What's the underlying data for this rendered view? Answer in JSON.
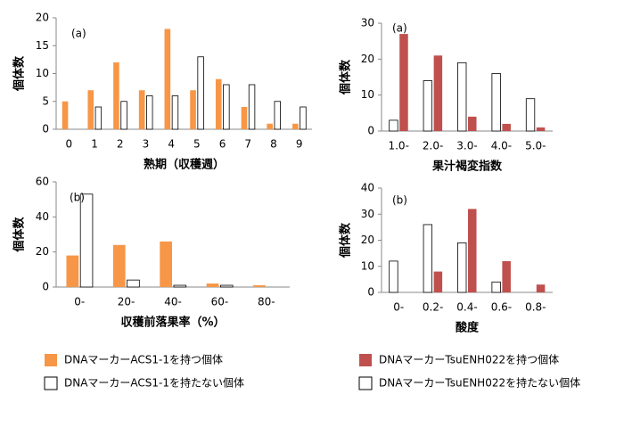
{
  "chart_data": [
    {
      "type": "bar",
      "annotation": "(a)",
      "ylabel": "個体数",
      "xlabel": "熟期（収穫週）",
      "categories": [
        "0",
        "1",
        "2",
        "3",
        "4",
        "5",
        "6",
        "7",
        "8",
        "9"
      ],
      "series": [
        {
          "name": "DNAマーカーACS1-1を持つ個体",
          "color": "#f79646",
          "values": [
            5,
            7,
            12,
            7,
            18,
            7,
            9,
            4,
            1,
            1
          ]
        },
        {
          "name": "DNAマーカーACS1-1を持たない個体",
          "color": "#ffffff",
          "values": [
            0,
            4,
            5,
            6,
            6,
            13,
            8,
            8,
            5,
            4
          ]
        }
      ],
      "ylim": [
        0,
        20
      ],
      "yticks": [
        0,
        5,
        10,
        15,
        20
      ]
    },
    {
      "type": "bar",
      "annotation": "(a)",
      "ylabel": "個体数",
      "xlabel": "果汁褐変指数",
      "categories": [
        "1.0-",
        "2.0-",
        "3.0-",
        "4.0-",
        "5.0-"
      ],
      "series": [
        {
          "name": "DNAマーカーTsuENH022を持たない個体",
          "color": "#ffffff",
          "values": [
            3,
            14,
            19,
            16,
            9
          ]
        },
        {
          "name": "DNAマーカーTsuENH022を持つ個体",
          "color": "#c0504d",
          "values": [
            27,
            21,
            4,
            2,
            1
          ]
        }
      ],
      "ylim": [
        0,
        30
      ],
      "yticks": [
        0,
        10,
        20,
        30
      ]
    },
    {
      "type": "bar",
      "annotation": "(b)",
      "ylabel": "個体数",
      "xlabel": "収穫前落果率（%）",
      "categories": [
        "0-",
        "20-",
        "40-",
        "60-",
        "80-"
      ],
      "series": [
        {
          "color": "#f79646",
          "values": [
            18,
            24,
            26,
            2,
            1
          ]
        },
        {
          "color": "#ffffff",
          "values": [
            53,
            4,
            1,
            1,
            0
          ]
        }
      ],
      "ylim": [
        0,
        60
      ],
      "yticks": [
        0,
        20,
        40,
        60
      ]
    },
    {
      "type": "bar",
      "annotation": "(b)",
      "ylabel": "個体数",
      "xlabel": "酸度",
      "categories": [
        "0-",
        "0.2-",
        "0.4-",
        "0.6-",
        "0.8-"
      ],
      "series": [
        {
          "color": "#ffffff",
          "values": [
            12,
            26,
            19,
            4,
            0
          ]
        },
        {
          "color": "#c0504d",
          "values": [
            0,
            8,
            32,
            12,
            3
          ]
        }
      ],
      "ylim": [
        0,
        40
      ],
      "yticks": [
        0,
        10,
        20,
        30,
        40
      ]
    }
  ]
}
